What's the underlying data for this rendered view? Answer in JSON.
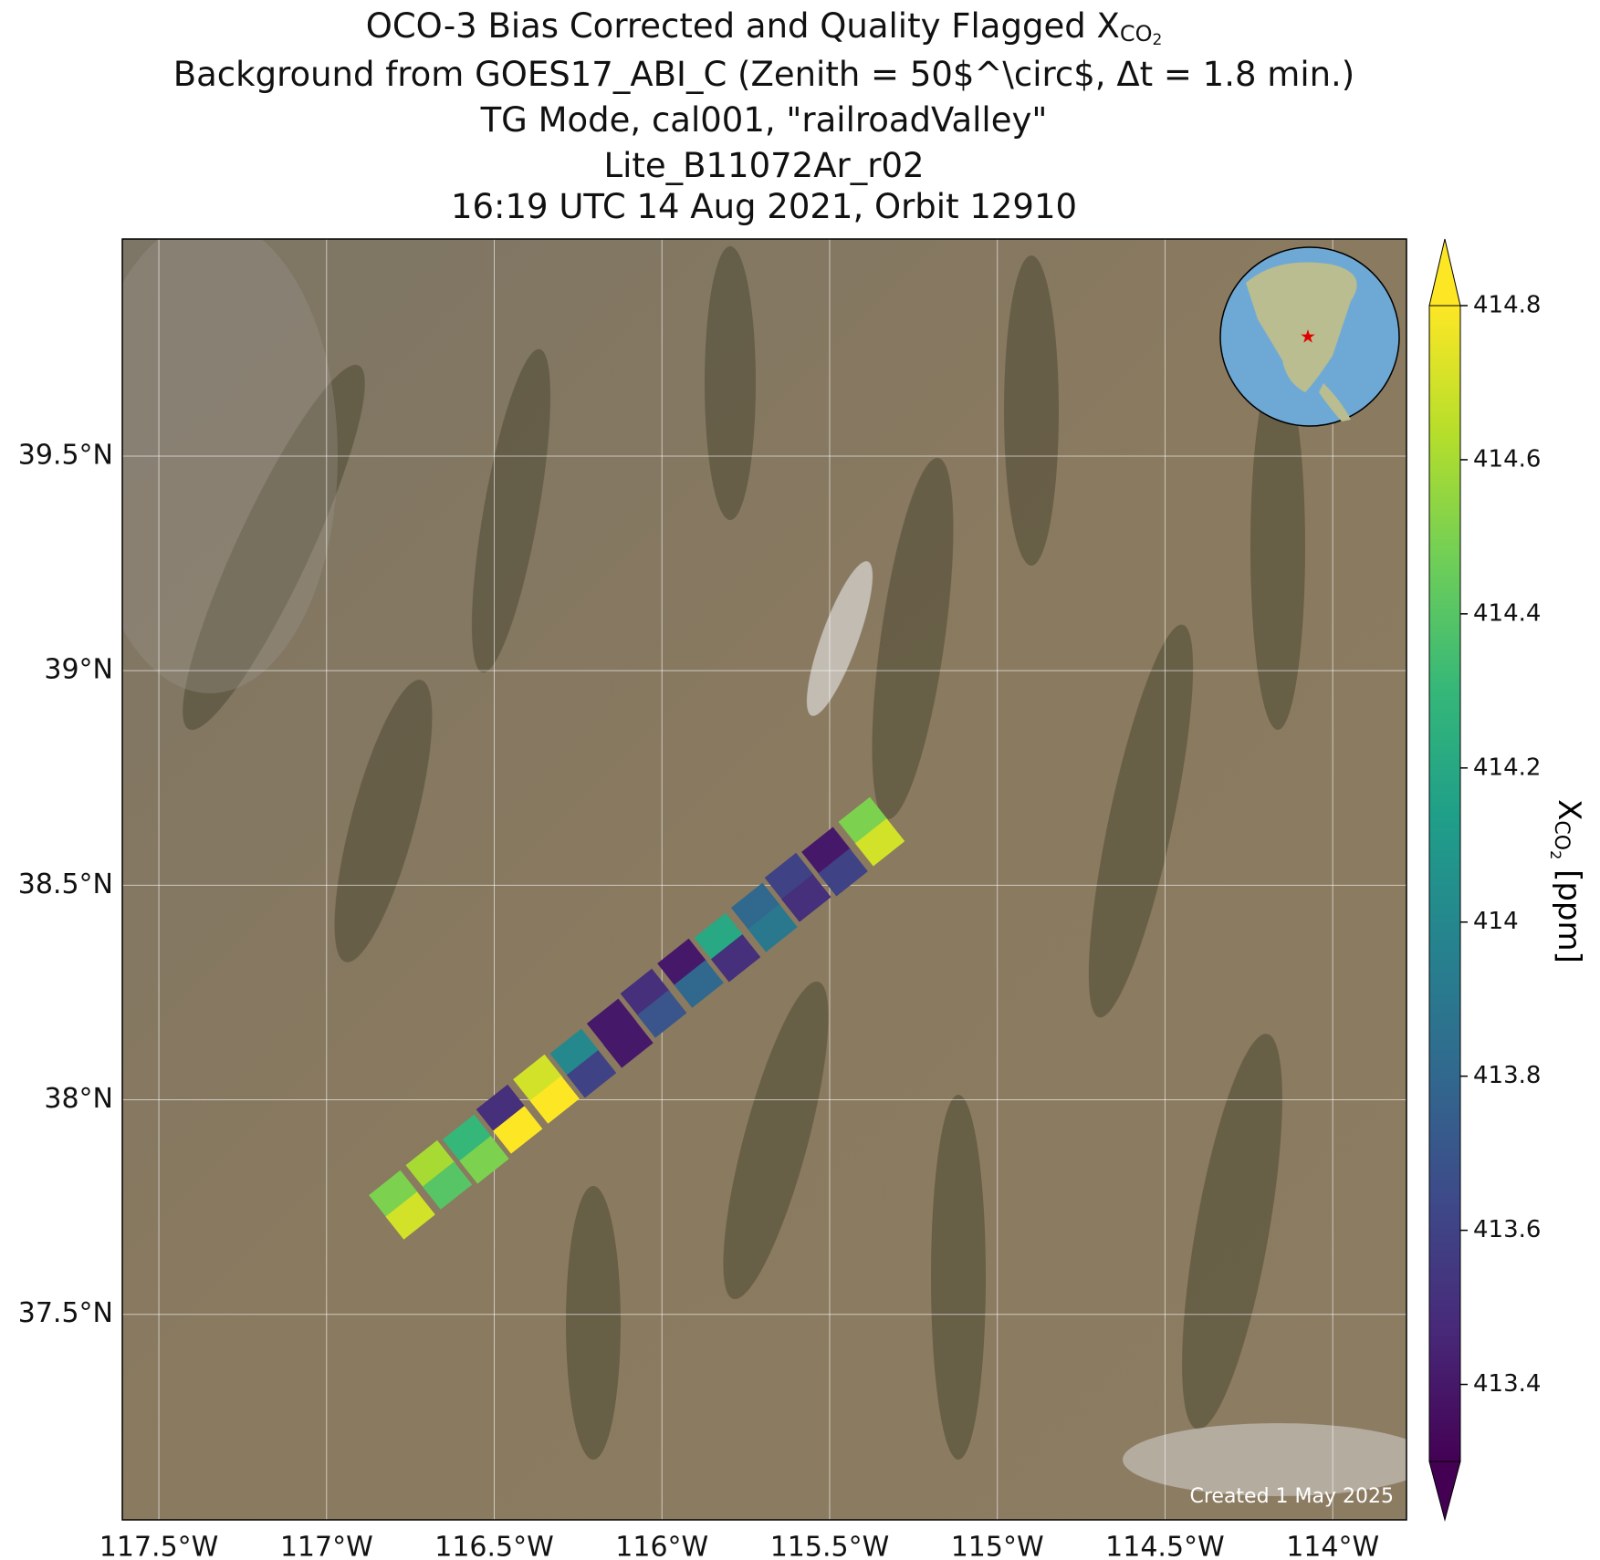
{
  "chart_data": {
    "type": "map",
    "title_lines": [
      {
        "text": "OCO-3 Bias Corrected and Quality Flagged X",
        "subscript": "CO",
        "subsubscript": "2"
      },
      {
        "text": "Background from GOES17_ABI_C (Zenith = 50$^\\circ$, Δt =  1.8 min.)"
      },
      {
        "text": "TG Mode, cal001, \"railroadValley\""
      },
      {
        "text": "Lite_B11072Ar_r02"
      },
      {
        "text": "16:19 UTC 14 Aug 2021, Orbit 12910"
      }
    ],
    "xlim": [
      -117.609,
      -113.78
    ],
    "ylim": [
      37.021,
      40.006
    ],
    "xticks": [
      {
        "value": -117.5,
        "label": "117.5°W"
      },
      {
        "value": -117,
        "label": "117°W"
      },
      {
        "value": -116.5,
        "label": "116.5°W"
      },
      {
        "value": -116,
        "label": "116°W"
      },
      {
        "value": -115.5,
        "label": "115.5°W"
      },
      {
        "value": -115,
        "label": "115°W"
      },
      {
        "value": -114.5,
        "label": "114.5°W"
      },
      {
        "value": -114,
        "label": "114°W"
      }
    ],
    "yticks": [
      {
        "value": 37.5,
        "label": "37.5°N"
      },
      {
        "value": 38,
        "label": "38°N"
      },
      {
        "value": 38.5,
        "label": "38.5°N"
      },
      {
        "value": 39,
        "label": "39°N"
      },
      {
        "value": 39.5,
        "label": "39.5°N"
      }
    ],
    "grid": true,
    "colormap": "viridis",
    "clim": [
      413.3,
      414.8
    ],
    "cticks": [
      413.4,
      413.6,
      413.8,
      414.0,
      414.2,
      414.4,
      414.6,
      414.8
    ],
    "colorbar_label": {
      "text": "X",
      "subscript": "CO",
      "subsubscript": "2",
      "suffix": " [ppm]"
    },
    "credit": "Created 1 May 2025",
    "soundings": {
      "lon": [
        -116.8,
        -116.69,
        -116.58,
        -116.48,
        -116.37,
        -116.26,
        -116.15,
        -116.05,
        -115.94,
        -115.83,
        -115.72,
        -115.62,
        -115.51,
        -115.4,
        -116.75,
        -116.64,
        -116.53,
        -116.43,
        -116.32,
        -116.21,
        -116.1,
        -116.0,
        -115.89,
        -115.78,
        -115.67,
        -115.57,
        -115.46,
        -115.35
      ],
      "lat": [
        37.78,
        37.85,
        37.91,
        37.98,
        38.05,
        38.11,
        38.18,
        38.25,
        38.32,
        38.38,
        38.45,
        38.52,
        38.58,
        38.65,
        37.73,
        37.8,
        37.86,
        37.93,
        38.0,
        38.06,
        38.13,
        38.2,
        38.27,
        38.33,
        38.4,
        38.47,
        38.53,
        38.6
      ],
      "xco2": [
        414.5,
        414.6,
        414.3,
        413.5,
        414.7,
        414.0,
        413.4,
        413.5,
        413.4,
        414.2,
        413.8,
        413.6,
        413.4,
        414.5,
        414.7,
        414.4,
        414.5,
        414.8,
        414.8,
        413.6,
        413.4,
        413.7,
        413.8,
        413.5,
        413.9,
        413.5,
        413.6,
        414.7
      ]
    }
  }
}
